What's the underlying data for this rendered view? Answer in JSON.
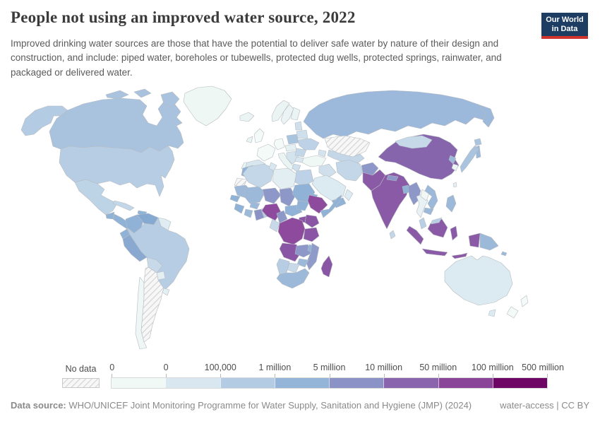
{
  "header": {
    "title": "People not using an improved water source, 2022",
    "logo_line1": "Our World",
    "logo_line2": "in Data",
    "logo_bg": "#1d3d63",
    "logo_accent": "#d0342c"
  },
  "subtitle": "Improved drinking water sources are those that have the potential to deliver safe water by nature of their design and construction, and include: piped water, boreholes or tubewells, protected dug wells, protected springs, rainwater, and packaged or delivered water.",
  "legend": {
    "no_data_label": "No data",
    "ticks": [
      "0",
      "0",
      "100,000",
      "1 million",
      "5 million",
      "10 million",
      "50 million",
      "100 million",
      "500 million"
    ],
    "colors": [
      "#f1f9f6",
      "#d9e8f0",
      "#b3cce3",
      "#94b5d8",
      "#8b93c6",
      "#8a64ad",
      "#8a4598",
      "#6d0664"
    ]
  },
  "footer": {
    "source_label": "Data source:",
    "source_text": "WHO/UNICEF Joint Monitoring Programme for Water Supply, Sanitation and Hygiene (JMP) (2024)",
    "note": "water-access | CC BY"
  },
  "chart_data": {
    "type": "choropleth_map",
    "title": "People not using an improved water source, 2022",
    "unit": "people",
    "year": 2022,
    "legend_position": "bottom",
    "color_scale_bins": [
      {
        "label": "No data",
        "color": "hatched"
      },
      {
        "range": "0 to 0",
        "color": "#f1f9f6"
      },
      {
        "range": "0 to 100,000",
        "color": "#d9e8f0"
      },
      {
        "range": "100,000 to 1 million",
        "color": "#b3cce3"
      },
      {
        "range": "1 to 5 million",
        "color": "#94b5d8"
      },
      {
        "range": "5 to 10 million",
        "color": "#8b93c6"
      },
      {
        "range": "10 to 50 million",
        "color": "#8a64ad"
      },
      {
        "range": "50 to 100 million",
        "color": "#8a4598"
      },
      {
        "range": "100 to 500 million",
        "color": "#6d0664"
      }
    ],
    "regions_by_bin": {
      "no_data": [
        "Argentina",
        "Kazakhstan",
        "Western Sahara"
      ],
      "50_to_100_million": [
        "Nigeria",
        "Ethiopia",
        "DR Congo"
      ],
      "10_to_50_million": [
        "China",
        "India",
        "Pakistan",
        "Indonesia",
        "Tanzania",
        "Kenya",
        "Uganda",
        "Angola",
        "Madagascar"
      ],
      "5_to_10_million": [
        "Afghanistan",
        "Niger",
        "Chad",
        "Cameroon",
        "Ghana",
        "Myanmar",
        "Zambia",
        "Mozambique",
        "Nepal"
      ],
      "1_to_5_million": [
        "Russia",
        "Colombia",
        "Venezuela",
        "Peru",
        "Yemen",
        "Sudan",
        "Somalia",
        "Mali",
        "Morocco",
        "Vietnam",
        "Cambodia",
        "Philippines",
        "Papua New Guinea",
        "South Africa",
        "Bangladesh"
      ],
      "100000_to_1_million": [
        "United States",
        "Canada",
        "Mexico",
        "Brazil",
        "Japan",
        "Poland",
        "Ukraine",
        "Egypt",
        "Algeria",
        "Iran",
        "Mongolia",
        "Thailand"
      ],
      "0_to_100000": [
        "Australia",
        "Saudi Arabia",
        "Libya",
        "Spain",
        "Paraguay",
        "Uruguay"
      ],
      "0_to_0": [
        "Greenland",
        "Chile",
        "Norway",
        "Sweden",
        "Finland",
        "United Kingdom",
        "France",
        "Germany",
        "Turkey",
        "South Korea",
        "New Zealand"
      ]
    }
  },
  "map": {
    "ocean": "#ffffff",
    "border": "#b6bcc2",
    "regions": {
      "alaska": "#b3cbe3",
      "canada": "#a9c2de",
      "arctic-islands-1": "#a9c2de",
      "arctic-islands-2": "#a9c2de",
      "baffin": "#a9c2de",
      "greenland": "#eef7f4",
      "iceland": "#eaf4f2",
      "usa": "#b6cde4",
      "mexico": "#bdd3e6",
      "guatemala": "#8fb2d6",
      "centam": "#8fb2d6",
      "cuba": "#c3d7e8",
      "hispaniola": "#8fb2d6",
      "colombia": "#8fb2d6",
      "venezuela": "#86a9d1",
      "guyanas": "#dfecf2",
      "ecuador": "#8fb2d6",
      "peru": "#8aa9d0",
      "brazil": "#b6cde4",
      "bolivia": "#c8daea",
      "paraguay": "#e4eff3",
      "uruguay": "#e4eff3",
      "argentina": "no-data",
      "chile": "#eef7f5",
      "uk": "#f4faf8",
      "ireland": "#eaf4f2",
      "norway": "#eaf4f2",
      "sweden": "#eaf4f2",
      "finland": "#eaf4f2",
      "baltics": "#cfe0ec",
      "france": "#f4faf8",
      "germany": "#f4faf8",
      "spain": "#d8e7ef",
      "portugal": "#eaf4f2",
      "italy": "#eaf4f2",
      "poland": "#a9c4df",
      "centeur": "#e4f0f2",
      "balkans": "#d4e4ee",
      "romania": "#c3d7e8",
      "bulgaria": "#d8e7ef",
      "greece": "#cfe0ec",
      "belarus": "#cfe0ec",
      "ukraine": "#bdd2e7",
      "russia": "#9cb8da",
      "chukotka": "#9cb8da",
      "sakhalin": "#9cb8da",
      "kazakhstan": "no-data",
      "centralasia": "#c3d7e8",
      "caucasus": "#d4e4ee",
      "turkey": "#f0f8f6",
      "syria-iraq": "#cfe0ec",
      "iran": "#c3d7e8",
      "saudi": "#dcebf1",
      "yemen": "#8fb2d6",
      "oman": "#dcebf1",
      "afghanistan": "#8d97c8",
      "pakistan": "#8a5aa6",
      "india": "#8a5aa6",
      "nepal": "#8d97c8",
      "bangladesh": "#8fb2d6",
      "srilanka": "#c3d7e8",
      "china": "#8765ac",
      "mongolia": "#c6d9e9",
      "korea-n": "#9cb9da",
      "korea-s": "#eef6f3",
      "japan": "#aac4df",
      "hokkaido": "#aac4df",
      "taiwan": "#e4f0f2",
      "myanmar": "#8d97c8",
      "thailand": "#e8f1f3",
      "laos": "#f0f7f5",
      "vietnam": "#9cb9da",
      "cambodia": "#9cb9da",
      "malaysia-pen": "#b9cfe5",
      "malaysia-borneo": "#b9cfe5",
      "philippines": "#9db9da",
      "sumatra": "#8a5aa6",
      "java": "#8a5aa6",
      "borneo": "#8a5aa6",
      "sulawesi": "#8a5aa6",
      "lesser-sunda": "#8a5aa6",
      "papua-indo": "#8a5aa6",
      "png": "#9cb9da",
      "solomon": "#9cb9da",
      "australia": "#dcebf1",
      "tasmania": "#dcebf1",
      "nz-north": "#f4faf8",
      "nz-south": "#f4faf8",
      "morocco": "#8fb2d6",
      "wsahara": "no-data",
      "algeria": "#c3d7e8",
      "tunisia": "#d8e7ef",
      "libya": "#e3eef3",
      "egypt": "#bdd2e7",
      "mauritania": "#9cb9da",
      "mali": "#9cb9da",
      "niger": "#8d97c8",
      "chad": "#8d97c8",
      "sudan": "#8fb2d6",
      "eritrea": "#8fb2d6",
      "senegal": "#8fb2d6",
      "guinea": "#8fb2d6",
      "cotedivoire": "#9cb9da",
      "burkina": "#9cb9da",
      "ghana": "#8b93c6",
      "togo-benin": "#b6cde4",
      "nigeria": "#8e4b9e",
      "cameroon": "#8d97c8",
      "car": "#8fb2d6",
      "ssudan": "#8fb2d6",
      "ethiopia": "#8e4b9e",
      "somalia": "#8fb2d6",
      "uganda": "#8a55a5",
      "kenya": "#8a55a5",
      "drc": "#8e4b9e",
      "congo-gabon": "#c8daea",
      "tanzania": "#8a55a5",
      "angola": "#8a55a5",
      "zambia": "#8d97c8",
      "malawi": "#8fb2d6",
      "mozambique": "#8f9cc9",
      "madagascar": "#8a55a5",
      "zimbabwe": "#9cb9da",
      "botswana": "#c8daea",
      "namibia": "#b6cde4",
      "southafrica": "#9cb9da"
    }
  }
}
